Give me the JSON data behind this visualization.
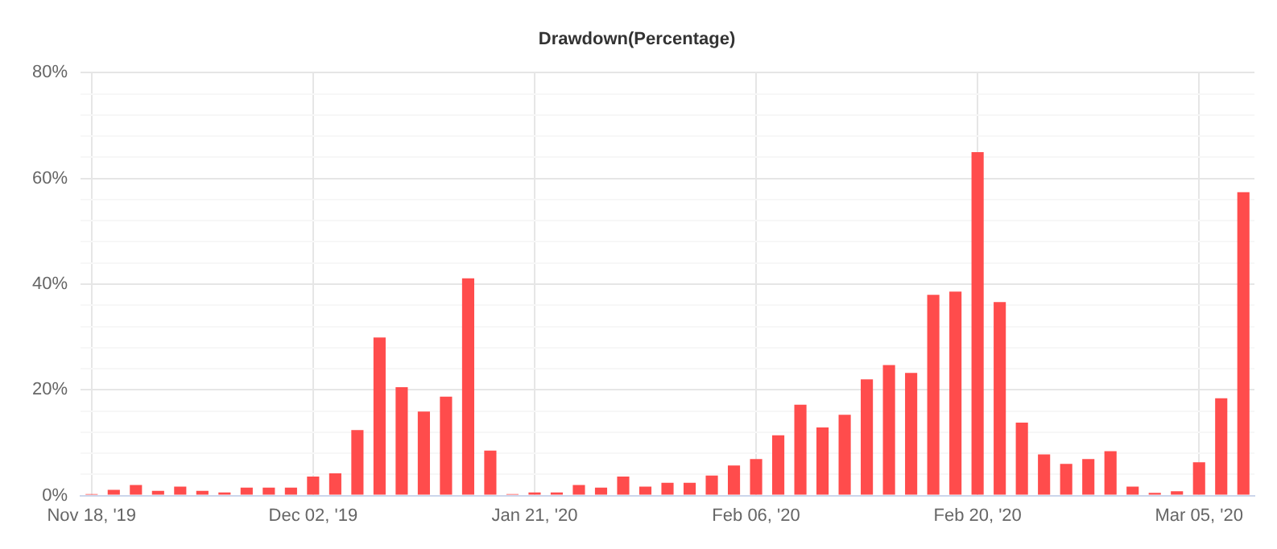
{
  "chart_data": {
    "type": "bar",
    "title": "Drawdown(Percentage)",
    "categories": [
      "Nov 18, '19",
      null,
      null,
      null,
      null,
      null,
      null,
      null,
      null,
      null,
      "Dec 02, '19",
      null,
      null,
      null,
      null,
      null,
      null,
      null,
      null,
      null,
      "Jan 21, '20",
      null,
      null,
      null,
      null,
      null,
      null,
      null,
      null,
      null,
      "Feb 06, '20",
      null,
      null,
      null,
      null,
      null,
      null,
      null,
      null,
      null,
      "Feb 20, '20",
      null,
      null,
      null,
      null,
      null,
      null,
      null,
      null,
      null,
      "Mar 05, '20",
      null,
      null
    ],
    "values": [
      0.3,
      1.1,
      2.0,
      0.9,
      1.7,
      0.9,
      0.6,
      1.5,
      1.5,
      1.5,
      3.6,
      4.2,
      12.4,
      29.9,
      20.5,
      15.9,
      18.7,
      41.1,
      8.5,
      0.3,
      0.6,
      0.6,
      2.0,
      1.5,
      3.6,
      1.7,
      2.4,
      2.4,
      3.8,
      5.7,
      6.9,
      11.4,
      17.2,
      12.9,
      15.3,
      22.0,
      24.7,
      23.2,
      38.0,
      38.6,
      65.0,
      36.6,
      13.8,
      7.8,
      6.0,
      6.9,
      8.4,
      1.7,
      0.5,
      0.8,
      6.3,
      18.4,
      57.4
    ],
    "color": "#ff4c4c",
    "ylim": [
      0,
      80
    ],
    "yticks": [
      {
        "value": 0,
        "label": "0%"
      },
      {
        "value": 4,
        "label": null
      },
      {
        "value": 8,
        "label": null
      },
      {
        "value": 12,
        "label": null
      },
      {
        "value": 16,
        "label": null
      },
      {
        "value": 20,
        "label": "20%"
      },
      {
        "value": 24,
        "label": null
      },
      {
        "value": 28,
        "label": null
      },
      {
        "value": 32,
        "label": null
      },
      {
        "value": 36,
        "label": null
      },
      {
        "value": 40,
        "label": "40%"
      },
      {
        "value": 44,
        "label": null
      },
      {
        "value": 48,
        "label": null
      },
      {
        "value": 52,
        "label": null
      },
      {
        "value": 56,
        "label": null
      },
      {
        "value": 60,
        "label": "60%"
      },
      {
        "value": 64,
        "label": null
      },
      {
        "value": 68,
        "label": null
      },
      {
        "value": 72,
        "label": null
      },
      {
        "value": 76,
        "label": null
      },
      {
        "value": 80,
        "label": "80%"
      }
    ],
    "grid": true
  }
}
